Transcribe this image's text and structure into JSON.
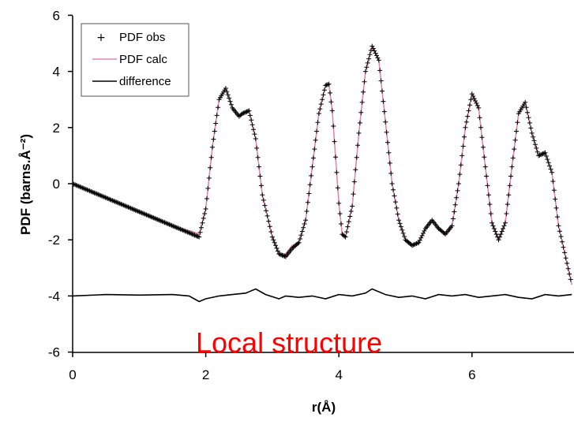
{
  "chart_data": {
    "type": "line",
    "title": "",
    "xlabel": "r(Å)",
    "ylabel": "PDF (barns.Å⁻²)",
    "xlim": [
      0,
      7.5
    ],
    "ylim": [
      -6,
      6
    ],
    "x_ticks": [
      "0",
      "2",
      "4",
      "6"
    ],
    "y_ticks": [
      "-6",
      "-4",
      "-2",
      "0",
      "2",
      "4",
      "6"
    ],
    "grid": false,
    "legend_position": "top-left",
    "legend": [
      {
        "label": "PDF obs",
        "marker": "+",
        "color": "#000000"
      },
      {
        "label": "PDF calc",
        "marker": "line",
        "color": "#e08aa8"
      },
      {
        "label": "difference",
        "marker": "line",
        "color": "#000000"
      }
    ],
    "annotation": {
      "text": "Local structure",
      "color": "#ff0000"
    },
    "series": [
      {
        "name": "PDF obs",
        "style": "markers",
        "color": "#000000",
        "x": [
          0.0,
          0.2,
          0.4,
          0.6,
          0.8,
          1.0,
          1.2,
          1.4,
          1.6,
          1.8,
          1.9,
          2.0,
          2.1,
          2.2,
          2.3,
          2.4,
          2.5,
          2.55,
          2.65,
          2.75,
          2.85,
          3.0,
          3.1,
          3.2,
          3.3,
          3.4,
          3.5,
          3.6,
          3.7,
          3.8,
          3.85,
          3.9,
          4.0,
          4.05,
          4.1,
          4.2,
          4.3,
          4.4,
          4.5,
          4.6,
          4.7,
          4.8,
          4.9,
          5.0,
          5.1,
          5.2,
          5.3,
          5.4,
          5.5,
          5.6,
          5.7,
          5.8,
          5.9,
          6.0,
          6.1,
          6.2,
          6.3,
          6.4,
          6.5,
          6.6,
          6.7,
          6.8,
          6.9,
          7.0,
          7.1,
          7.2,
          7.3,
          7.5
        ],
        "y": [
          0.0,
          -0.2,
          -0.4,
          -0.6,
          -0.8,
          -1.0,
          -1.2,
          -1.4,
          -1.6,
          -1.8,
          -1.9,
          -0.9,
          1.3,
          3.0,
          3.4,
          2.7,
          2.4,
          2.5,
          2.6,
          1.6,
          -0.4,
          -1.9,
          -2.5,
          -2.6,
          -2.3,
          -2.1,
          -1.3,
          0.6,
          2.5,
          3.5,
          3.55,
          2.6,
          -0.7,
          -1.8,
          -1.9,
          -0.8,
          1.8,
          4.0,
          4.9,
          4.4,
          2.2,
          0.0,
          -1.3,
          -2.0,
          -2.2,
          -2.1,
          -1.6,
          -1.3,
          -1.6,
          -1.8,
          -1.5,
          0.0,
          2.0,
          3.2,
          2.7,
          0.6,
          -1.4,
          -2.0,
          -1.4,
          0.6,
          2.5,
          2.9,
          1.8,
          1.0,
          1.1,
          0.4,
          -1.5,
          -3.6
        ]
      },
      {
        "name": "PDF calc",
        "style": "line",
        "color": "#e08aa8",
        "x": [
          0.0,
          0.2,
          0.4,
          0.6,
          0.8,
          1.0,
          1.2,
          1.4,
          1.6,
          1.8,
          1.9,
          2.0,
          2.1,
          2.2,
          2.3,
          2.4,
          2.5,
          2.55,
          2.65,
          2.75,
          2.85,
          3.0,
          3.1,
          3.2,
          3.3,
          3.4,
          3.5,
          3.6,
          3.7,
          3.8,
          3.85,
          3.9,
          4.0,
          4.05,
          4.1,
          4.2,
          4.3,
          4.4,
          4.5,
          4.6,
          4.7,
          4.8,
          4.9,
          5.0,
          5.1,
          5.2,
          5.3,
          5.4,
          5.5,
          5.6,
          5.7,
          5.8,
          5.9,
          6.0,
          6.1,
          6.2,
          6.3,
          6.4,
          6.5,
          6.6,
          6.7,
          6.8,
          6.9,
          7.0,
          7.1,
          7.2,
          7.3,
          7.5
        ],
        "y": [
          0.0,
          -0.2,
          -0.4,
          -0.6,
          -0.8,
          -1.0,
          -1.2,
          -1.4,
          -1.6,
          -1.7,
          -1.8,
          -0.9,
          1.3,
          3.0,
          3.4,
          2.7,
          2.4,
          2.5,
          2.6,
          1.6,
          -0.4,
          -1.9,
          -2.5,
          -2.5,
          -2.2,
          -2.1,
          -1.3,
          0.6,
          2.5,
          3.5,
          3.55,
          2.6,
          -0.7,
          -1.8,
          -1.9,
          -0.8,
          1.8,
          4.0,
          4.9,
          4.4,
          2.2,
          0.0,
          -1.3,
          -2.0,
          -2.2,
          -2.1,
          -1.6,
          -1.3,
          -1.6,
          -1.8,
          -1.5,
          0.0,
          2.0,
          3.2,
          2.7,
          0.6,
          -1.4,
          -2.0,
          -1.4,
          0.6,
          2.5,
          2.9,
          1.8,
          1.0,
          1.1,
          0.4,
          -1.5,
          -3.6
        ]
      },
      {
        "name": "difference",
        "style": "line",
        "color": "#000000",
        "x": [
          0.0,
          0.5,
          1.0,
          1.5,
          1.75,
          1.9,
          2.0,
          2.2,
          2.4,
          2.6,
          2.75,
          2.9,
          3.1,
          3.2,
          3.4,
          3.6,
          3.8,
          4.0,
          4.2,
          4.4,
          4.5,
          4.7,
          4.9,
          5.1,
          5.3,
          5.5,
          5.7,
          5.9,
          6.1,
          6.3,
          6.5,
          6.7,
          6.9,
          7.1,
          7.3,
          7.5
        ],
        "y": [
          -4.0,
          -3.95,
          -3.97,
          -3.95,
          -4.0,
          -4.2,
          -4.1,
          -4.0,
          -3.95,
          -3.9,
          -3.75,
          -3.95,
          -4.1,
          -4.0,
          -4.05,
          -4.0,
          -4.1,
          -3.95,
          -4.0,
          -3.9,
          -3.75,
          -3.95,
          -4.05,
          -4.0,
          -4.1,
          -3.95,
          -4.0,
          -3.95,
          -4.05,
          -4.0,
          -3.95,
          -4.05,
          -4.1,
          -3.95,
          -4.0,
          -3.95
        ]
      }
    ]
  }
}
